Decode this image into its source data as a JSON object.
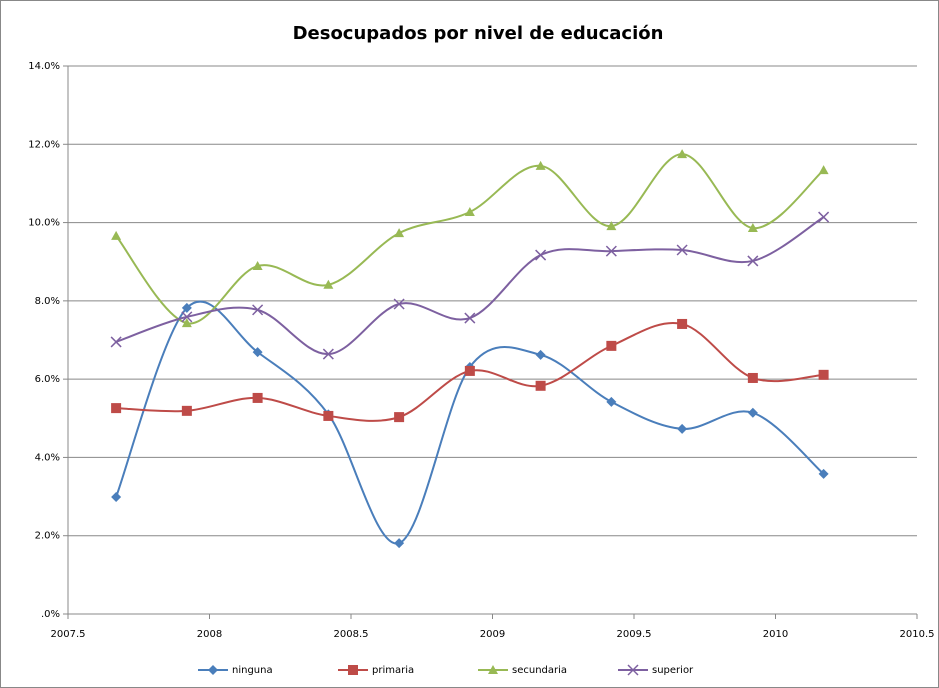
{
  "chart_data": {
    "type": "line",
    "title": "Desocupados por nivel de educación",
    "x": [
      2007.67,
      2007.92,
      2008.17,
      2008.42,
      2008.67,
      2008.92,
      2009.17,
      2009.42,
      2009.67,
      2009.92,
      2010.17
    ],
    "series": [
      {
        "name": "ninguna",
        "color": "#4a7ebb",
        "marker": "diamond",
        "values": [
          2.99,
          7.82,
          6.69,
          5.1,
          1.81,
          6.31,
          6.62,
          5.42,
          4.73,
          5.14,
          3.58
        ]
      },
      {
        "name": "primaria",
        "color": "#be4b48",
        "marker": "square",
        "values": [
          5.26,
          5.19,
          5.52,
          5.06,
          5.03,
          6.21,
          5.83,
          6.85,
          7.41,
          6.03,
          6.11
        ]
      },
      {
        "name": "secundaria",
        "color": "#98b954",
        "marker": "triangle",
        "values": [
          9.66,
          7.43,
          8.89,
          8.41,
          9.73,
          10.27,
          11.45,
          9.91,
          11.75,
          9.86,
          11.34
        ]
      },
      {
        "name": "superior",
        "color": "#7d60a0",
        "marker": "x",
        "values": [
          6.95,
          7.59,
          7.77,
          6.64,
          7.92,
          7.56,
          9.17,
          9.27,
          9.3,
          9.02,
          10.14
        ]
      }
    ],
    "xlim": [
      2007.5,
      2010.5
    ],
    "xticks": [
      2007.5,
      2008,
      2008.5,
      2009,
      2009.5,
      2010,
      2010.5
    ],
    "ylim": [
      0,
      14
    ],
    "yticks": [
      {
        "value": 0,
        "label": ".0%"
      },
      {
        "value": 2,
        "label": "2.0%"
      },
      {
        "value": 4,
        "label": "4.0%"
      },
      {
        "value": 6,
        "label": "6.0%"
      },
      {
        "value": 8,
        "label": "8.0%"
      },
      {
        "value": 10,
        "label": "10.0%"
      },
      {
        "value": 12,
        "label": "12.0%"
      },
      {
        "value": 14,
        "label": "14.0%"
      }
    ],
    "grid": true,
    "smooth": true,
    "legend": "bottom"
  }
}
